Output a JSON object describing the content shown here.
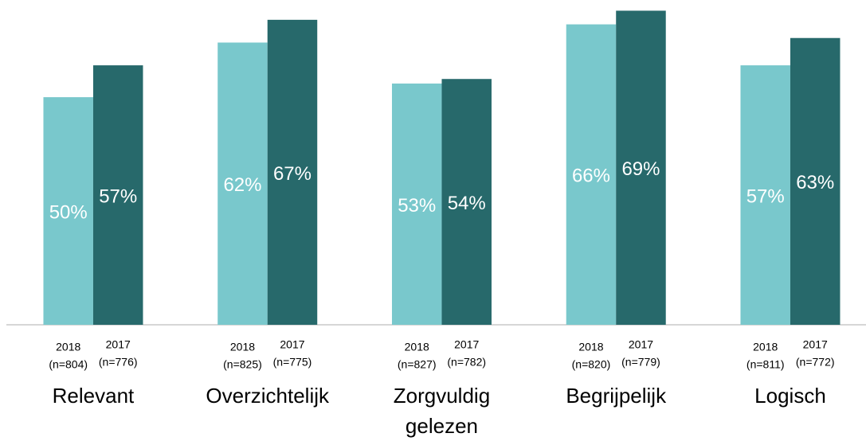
{
  "chart_data": {
    "type": "bar",
    "categories": [
      "Relevant",
      "Overzichtelijk",
      "Zorgvuldig gelezen",
      "Begrijpelijk",
      "Logisch"
    ],
    "series": [
      {
        "name": "2018",
        "color": "#79c8cc",
        "values": [
          50,
          62,
          53,
          66,
          57
        ],
        "value_labels": [
          "50%",
          "62%",
          "53%",
          "66%",
          "57%"
        ],
        "sample_labels": [
          "(n=804)",
          "(n=825)",
          "(n=827)",
          "(n=820)",
          "(n=811)"
        ]
      },
      {
        "name": "2017",
        "color": "#27696b",
        "values": [
          57,
          67,
          54,
          69,
          63
        ],
        "value_labels": [
          "57%",
          "67%",
          "54%",
          "69%",
          "63%"
        ],
        "sample_labels": [
          "(n=776)",
          "(n=775)",
          "(n=782)",
          "(n=779)",
          "(n=772)"
        ]
      }
    ],
    "ylim": [
      0,
      71
    ]
  }
}
